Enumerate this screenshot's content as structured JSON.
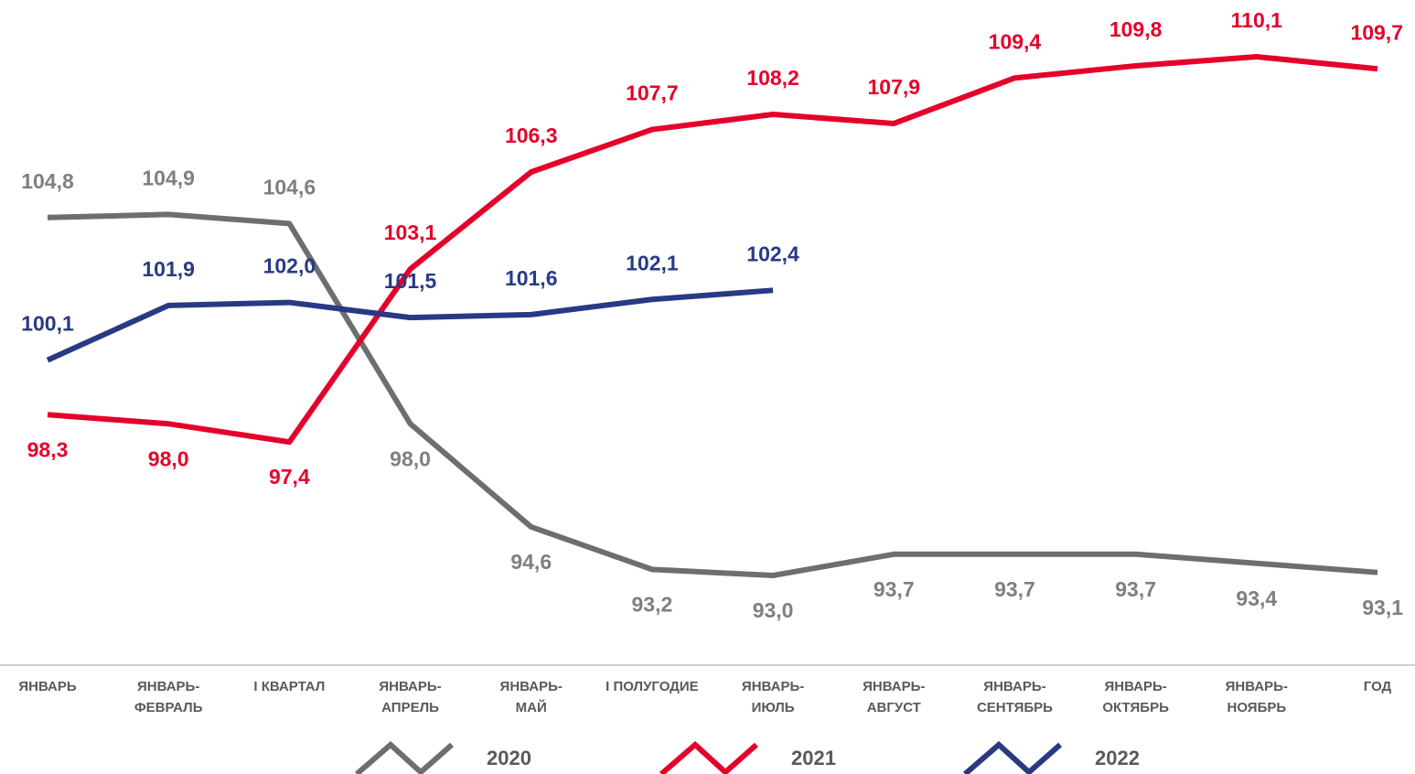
{
  "chart_data": {
    "type": "line",
    "categories": [
      "ЯНВАРЬ",
      "ЯНВАРЬ-\nФЕВРАЛЬ",
      "I КВАРТАЛ",
      "ЯНВАРЬ-\nАПРЕЛЬ",
      "ЯНВАРЬ-\nМАЙ",
      "I ПОЛУГОДИЕ",
      "ЯНВАРЬ-\nИЮЛЬ",
      "ЯНВАРЬ-\nАВГУСТ",
      "ЯНВАРЬ-\nСЕНТЯБРЬ",
      "ЯНВАРЬ-\nОКТЯБРЬ",
      "ЯНВАРЬ-\nНОЯБРЬ",
      "ГОД"
    ],
    "series": [
      {
        "name": "2020",
        "color": "#6e6e6e",
        "label_color": "#7f7f7f",
        "values": [
          104.8,
          104.9,
          104.6,
          98.0,
          94.6,
          93.2,
          93.0,
          93.7,
          93.7,
          93.7,
          93.4,
          93.1
        ],
        "value_labels": [
          "104,8",
          "104,9",
          "104,6",
          "98,0",
          "94,6",
          "93,2",
          "93,0",
          "93,7",
          "93,7",
          "93,7",
          "93,4",
          "93,1"
        ]
      },
      {
        "name": "2021",
        "color": "#e4002b",
        "label_color": "#e4002b",
        "values": [
          98.3,
          98.0,
          97.4,
          103.1,
          106.3,
          107.7,
          108.2,
          107.9,
          109.4,
          109.8,
          110.1,
          109.7
        ],
        "value_labels": [
          "98,3",
          "98,0",
          "97,4",
          "103,1",
          "106,3",
          "107,7",
          "108,2",
          "107,9",
          "109,4",
          "109,8",
          "110,1",
          "109,7"
        ]
      },
      {
        "name": "2022",
        "color": "#283a84",
        "label_color": "#283a84",
        "values": [
          100.1,
          101.9,
          102.0,
          101.5,
          101.6,
          102.1,
          102.4,
          null,
          null,
          null,
          null,
          null
        ],
        "value_labels": [
          "100,1",
          "101,9",
          "102,0",
          "101,5",
          "101,6",
          "102,1",
          "102,4",
          null,
          null,
          null,
          null,
          null
        ]
      }
    ],
    "legend": "bottom"
  }
}
